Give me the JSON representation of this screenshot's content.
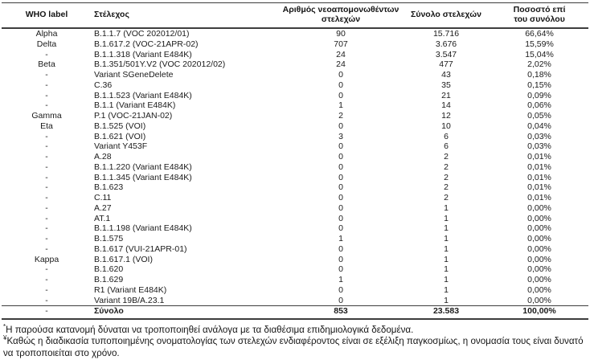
{
  "table": {
    "headers": {
      "who": "WHO label",
      "strain": "Στέλεχος",
      "newly": "Αριθμός νεοαπομονωθέντων στελεχών",
      "total": "Σύνολο στελεχών",
      "pct": "Ποσοστό επί του συνόλου"
    },
    "rows": [
      {
        "who": "Alpha",
        "strain": "B.1.1.7 (VOC 202012/01)",
        "newly": "90",
        "total": "15.716",
        "pct": "66,64%"
      },
      {
        "who": "Delta",
        "strain": "B.1.617.2 (VOC-21APR-02)",
        "newly": "707",
        "total": "3.676",
        "pct": "15,59%"
      },
      {
        "who": "-",
        "strain": "B.1.1.318 (Variant E484K)",
        "newly": "24",
        "total": "3.547",
        "pct": "15,04%"
      },
      {
        "who": "Beta",
        "strain": "B.1.351/501Y.V2 (VOC 202012/02)",
        "newly": "24",
        "total": "477",
        "pct": "2,02%"
      },
      {
        "who": "-",
        "strain": "Variant SGeneDelete",
        "newly": "0",
        "total": "43",
        "pct": "0,18%"
      },
      {
        "who": "-",
        "strain": "C.36",
        "newly": "0",
        "total": "35",
        "pct": "0,15%"
      },
      {
        "who": "-",
        "strain": "B.1.1.523 (Variant E484K)",
        "newly": "0",
        "total": "21",
        "pct": "0,09%"
      },
      {
        "who": "-",
        "strain": "B.1.1 (Variant E484K)",
        "newly": "1",
        "total": "14",
        "pct": "0,06%"
      },
      {
        "who": "Gamma",
        "strain": "P.1 (VOC-21JAN-02)",
        "newly": "2",
        "total": "12",
        "pct": "0,05%"
      },
      {
        "who": "Eta",
        "strain": "B.1.525 (VOI)",
        "newly": "0",
        "total": "10",
        "pct": "0,04%"
      },
      {
        "who": "-",
        "strain": "B.1.621 (VOI)",
        "newly": "3",
        "total": "6",
        "pct": "0,03%"
      },
      {
        "who": "-",
        "strain": "Variant Y453F",
        "newly": "0",
        "total": "6",
        "pct": "0,03%"
      },
      {
        "who": "-",
        "strain": "A.28",
        "newly": "0",
        "total": "2",
        "pct": "0,01%"
      },
      {
        "who": "-",
        "strain": "B.1.1.220 (Variant E484K)",
        "newly": "0",
        "total": "2",
        "pct": "0,01%"
      },
      {
        "who": "-",
        "strain": "B.1.1.345 (Variant E484K)",
        "newly": "0",
        "total": "2",
        "pct": "0,01%"
      },
      {
        "who": "-",
        "strain": "B.1.623",
        "newly": "0",
        "total": "2",
        "pct": "0,01%"
      },
      {
        "who": "-",
        "strain": "C.11",
        "newly": "0",
        "total": "2",
        "pct": "0,01%"
      },
      {
        "who": "-",
        "strain": "A.27",
        "newly": "0",
        "total": "1",
        "pct": "0,00%"
      },
      {
        "who": "-",
        "strain": "AT.1",
        "newly": "0",
        "total": "1",
        "pct": "0,00%"
      },
      {
        "who": "-",
        "strain": "B.1.1.198 (Variant E484K)",
        "newly": "0",
        "total": "1",
        "pct": "0,00%"
      },
      {
        "who": "-",
        "strain": "B.1.575",
        "newly": "1",
        "total": "1",
        "pct": "0,00%"
      },
      {
        "who": "-",
        "strain": "B.1.617 (VUI-21APR-01)",
        "newly": "0",
        "total": "1",
        "pct": "0,00%"
      },
      {
        "who": "Kappa",
        "strain": "B.1.617.1 (VOI)",
        "newly": "0",
        "total": "1",
        "pct": "0,00%"
      },
      {
        "who": "-",
        "strain": "B.1.620",
        "newly": "0",
        "total": "1",
        "pct": "0,00%"
      },
      {
        "who": "-",
        "strain": "B.1.629",
        "newly": "1",
        "total": "1",
        "pct": "0,00%"
      },
      {
        "who": "-",
        "strain": "R1 (Variant E484K)",
        "newly": "0",
        "total": "1",
        "pct": "0,00%"
      },
      {
        "who": "-",
        "strain": "Variant 19B/A.23.1",
        "newly": "0",
        "total": "1",
        "pct": "0,00%"
      }
    ],
    "total_row": {
      "who": "-",
      "strain": "Σύνολο",
      "newly": "853",
      "total": "23.583",
      "pct": "100,00%"
    }
  },
  "footnotes": [
    {
      "marker": "*",
      "text": "Η παρούσα κατανομή δύναται να τροποποιηθεί ανάλογα με τα διαθέσιμα επιδημιολογικά δεδομένα."
    },
    {
      "marker": "¥",
      "text": "Καθώς η διαδικασία τυποποιημένης ονοματολογίας των στελεχών ενδιαφέροντος είναι σε εξέλιξη παγκοσμίως, η ονομασία τους είναι δυνατό να τροποποιείται στο χρόνο."
    }
  ]
}
